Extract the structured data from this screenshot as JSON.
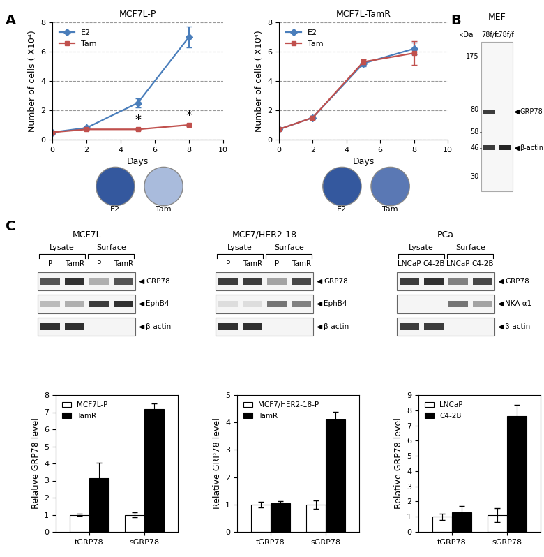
{
  "panel_labels": [
    "A",
    "B",
    "C"
  ],
  "chart_data": [
    {
      "type": "line",
      "title": "MCF7L-P",
      "xlabel": "Days",
      "ylabel": "Number of cells ( X10⁴)",
      "x": [
        0,
        2,
        5,
        8
      ],
      "xlim": [
        0,
        10
      ],
      "xticks": [
        0,
        2,
        4,
        6,
        8,
        10
      ],
      "ylim": [
        0,
        8
      ],
      "yticks": [
        0,
        2,
        4,
        6,
        8
      ],
      "grid": true,
      "legend": "upper left",
      "series": [
        {
          "name": "E2",
          "color": "#4a7ebb",
          "marker": "diamond",
          "values": [
            0.5,
            0.8,
            2.5,
            7.0
          ],
          "errors": [
            0.05,
            0.1,
            0.3,
            0.7
          ]
        },
        {
          "name": "Tam",
          "color": "#c0504d",
          "marker": "square",
          "values": [
            0.5,
            0.7,
            0.7,
            1.0
          ],
          "errors": [
            0.05,
            0.05,
            0.05,
            0.08
          ]
        }
      ],
      "annotations": [
        {
          "x": 5,
          "y": 0.9,
          "text": "*"
        },
        {
          "x": 8,
          "y": 1.2,
          "text": "*"
        }
      ]
    },
    {
      "type": "line",
      "title": "MCF7L-TamR",
      "xlabel": "Days",
      "ylabel": "Number of cells ( X10⁴)",
      "x": [
        0,
        2,
        5,
        8
      ],
      "xlim": [
        0,
        10
      ],
      "xticks": [
        0,
        2,
        4,
        6,
        8,
        10
      ],
      "ylim": [
        0,
        8
      ],
      "yticks": [
        0,
        2,
        4,
        6,
        8
      ],
      "grid": true,
      "legend": "upper left",
      "series": [
        {
          "name": "E2",
          "color": "#4a7ebb",
          "marker": "diamond",
          "values": [
            0.7,
            1.5,
            5.2,
            6.2
          ],
          "errors": [
            0.05,
            0.1,
            0.2,
            0.4
          ]
        },
        {
          "name": "Tam",
          "color": "#c0504d",
          "marker": "square",
          "values": [
            0.7,
            1.5,
            5.3,
            5.9
          ],
          "errors": [
            0.05,
            0.1,
            0.2,
            0.8
          ]
        }
      ]
    },
    {
      "type": "bar",
      "categories": [
        "tGRP78",
        "sGRP78"
      ],
      "ylabel": "Relative GRP78 level",
      "ylim": [
        0,
        8
      ],
      "yticks": [
        0,
        1,
        2,
        3,
        4,
        5,
        6,
        7,
        8
      ],
      "legend": "upper left",
      "series": [
        {
          "name": "MCF7L-P",
          "color": "#ffffff",
          "values": [
            1.0,
            1.0
          ],
          "errors": [
            0.08,
            0.15
          ]
        },
        {
          "name": "TamR",
          "color": "#000000",
          "values": [
            3.15,
            7.2
          ],
          "errors": [
            0.9,
            0.3
          ]
        }
      ]
    },
    {
      "type": "bar",
      "categories": [
        "tGRP78",
        "sGRP78"
      ],
      "ylabel": "Relative GRP78 level",
      "ylim": [
        0,
        5
      ],
      "yticks": [
        0,
        1,
        2,
        3,
        4,
        5
      ],
      "legend": "upper left",
      "series": [
        {
          "name": "MCF7/HER2-18-P",
          "color": "#ffffff",
          "values": [
            1.0,
            1.0
          ],
          "errors": [
            0.1,
            0.15
          ]
        },
        {
          "name": "TamR",
          "color": "#000000",
          "values": [
            1.05,
            4.1
          ],
          "errors": [
            0.08,
            0.28
          ]
        }
      ]
    },
    {
      "type": "bar",
      "categories": [
        "tGRP78",
        "sGRP78"
      ],
      "ylabel": "Relative GRP78 level",
      "ylim": [
        0,
        9
      ],
      "yticks": [
        0,
        1,
        2,
        3,
        4,
        5,
        6,
        7,
        8,
        9
      ],
      "legend": "upper left",
      "series": [
        {
          "name": "LNCaP",
          "color": "#ffffff",
          "values": [
            1.0,
            1.1
          ],
          "errors": [
            0.2,
            0.45
          ]
        },
        {
          "name": "C4-2B",
          "color": "#000000",
          "values": [
            1.3,
            7.6
          ],
          "errors": [
            0.4,
            0.75
          ]
        }
      ]
    }
  ],
  "wells": [
    {
      "labels": [
        "E2",
        "Tam"
      ],
      "colors": [
        "#34589e",
        "#a9bbdc"
      ]
    },
    {
      "labels": [
        "E2",
        "Tam"
      ],
      "colors": [
        "#34589e",
        "#5a78b4"
      ]
    }
  ],
  "blot_B": {
    "title": "MEF",
    "unit": "kDa",
    "lanes": [
      "78f/f",
      "c78f/f"
    ],
    "markers": [
      175,
      80,
      58,
      46,
      30
    ],
    "bands": [
      {
        "label": "GRP78",
        "kda": 78,
        "intensity": [
          0.85,
          0.0
        ]
      },
      {
        "label": "β-actin",
        "kda": 46,
        "intensity": [
          0.85,
          0.95
        ]
      }
    ]
  },
  "blots_C": [
    {
      "title": "MCF7L",
      "groups": [
        "Lysate",
        "Surface"
      ],
      "lanes": [
        "P",
        "TamR",
        "P",
        "TamR"
      ],
      "rows": [
        {
          "label": "GRP78",
          "intensity": [
            0.75,
            0.9,
            0.35,
            0.75
          ]
        },
        {
          "label": "EphB4",
          "intensity": [
            0.3,
            0.35,
            0.85,
            0.9
          ]
        },
        {
          "label": "β-actin",
          "intensity": [
            0.9,
            0.9,
            0.0,
            0.0
          ]
        }
      ]
    },
    {
      "title": "MCF7/HER2-18",
      "groups": [
        "Lysate",
        "Surface"
      ],
      "lanes": [
        "P",
        "TamR",
        "P",
        "TamR"
      ],
      "rows": [
        {
          "label": "GRP78",
          "intensity": [
            0.85,
            0.85,
            0.4,
            0.8
          ]
        },
        {
          "label": "EphB4",
          "intensity": [
            0.15,
            0.15,
            0.6,
            0.55
          ]
        },
        {
          "label": "β-actin",
          "intensity": [
            0.9,
            0.9,
            0.0,
            0.0
          ]
        }
      ]
    },
    {
      "title": "PCa",
      "groups": [
        "Lysate",
        "Surface"
      ],
      "lanes": [
        "LNCaP",
        "C4-2B",
        "LNCaP",
        "C4-2B"
      ],
      "rows": [
        {
          "label": "GRP78",
          "intensity": [
            0.85,
            0.9,
            0.55,
            0.8
          ]
        },
        {
          "label": "NKA α1",
          "intensity": [
            0.0,
            0.0,
            0.6,
            0.4
          ]
        },
        {
          "label": "β-actin",
          "intensity": [
            0.85,
            0.85,
            0.0,
            0.0
          ]
        }
      ]
    }
  ]
}
